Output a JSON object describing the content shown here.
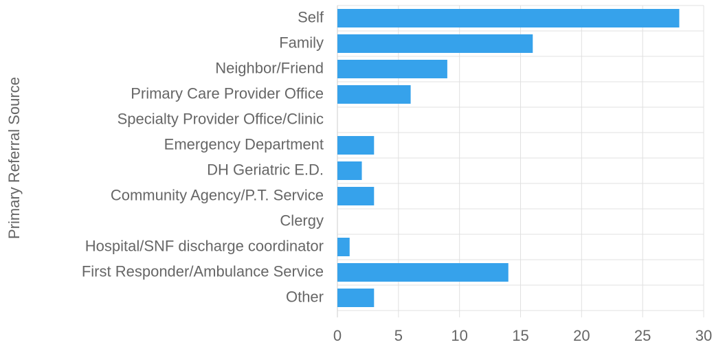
{
  "chart_data": {
    "type": "bar",
    "orientation": "horizontal",
    "y_axis_label": "Primary Referral Source",
    "categories": [
      "Self",
      "Family",
      "Neighbor/Friend",
      "Primary Care Provider Office",
      "Specialty Provider Office/Clinic",
      "Emergency Department",
      "DH Geriatric E.D.",
      "Community Agency/P.T. Service",
      "Clergy",
      "Hospital/SNF discharge coordinator",
      "First Responder/Ambulance Service",
      "Other"
    ],
    "values": [
      28,
      16,
      9,
      6,
      0,
      3,
      2,
      3,
      0,
      1,
      14,
      3
    ],
    "color": "#36a2eb",
    "xlim": [
      0,
      30
    ],
    "xticks": [
      0,
      5,
      10,
      15,
      20,
      25,
      30
    ],
    "grid": true
  }
}
